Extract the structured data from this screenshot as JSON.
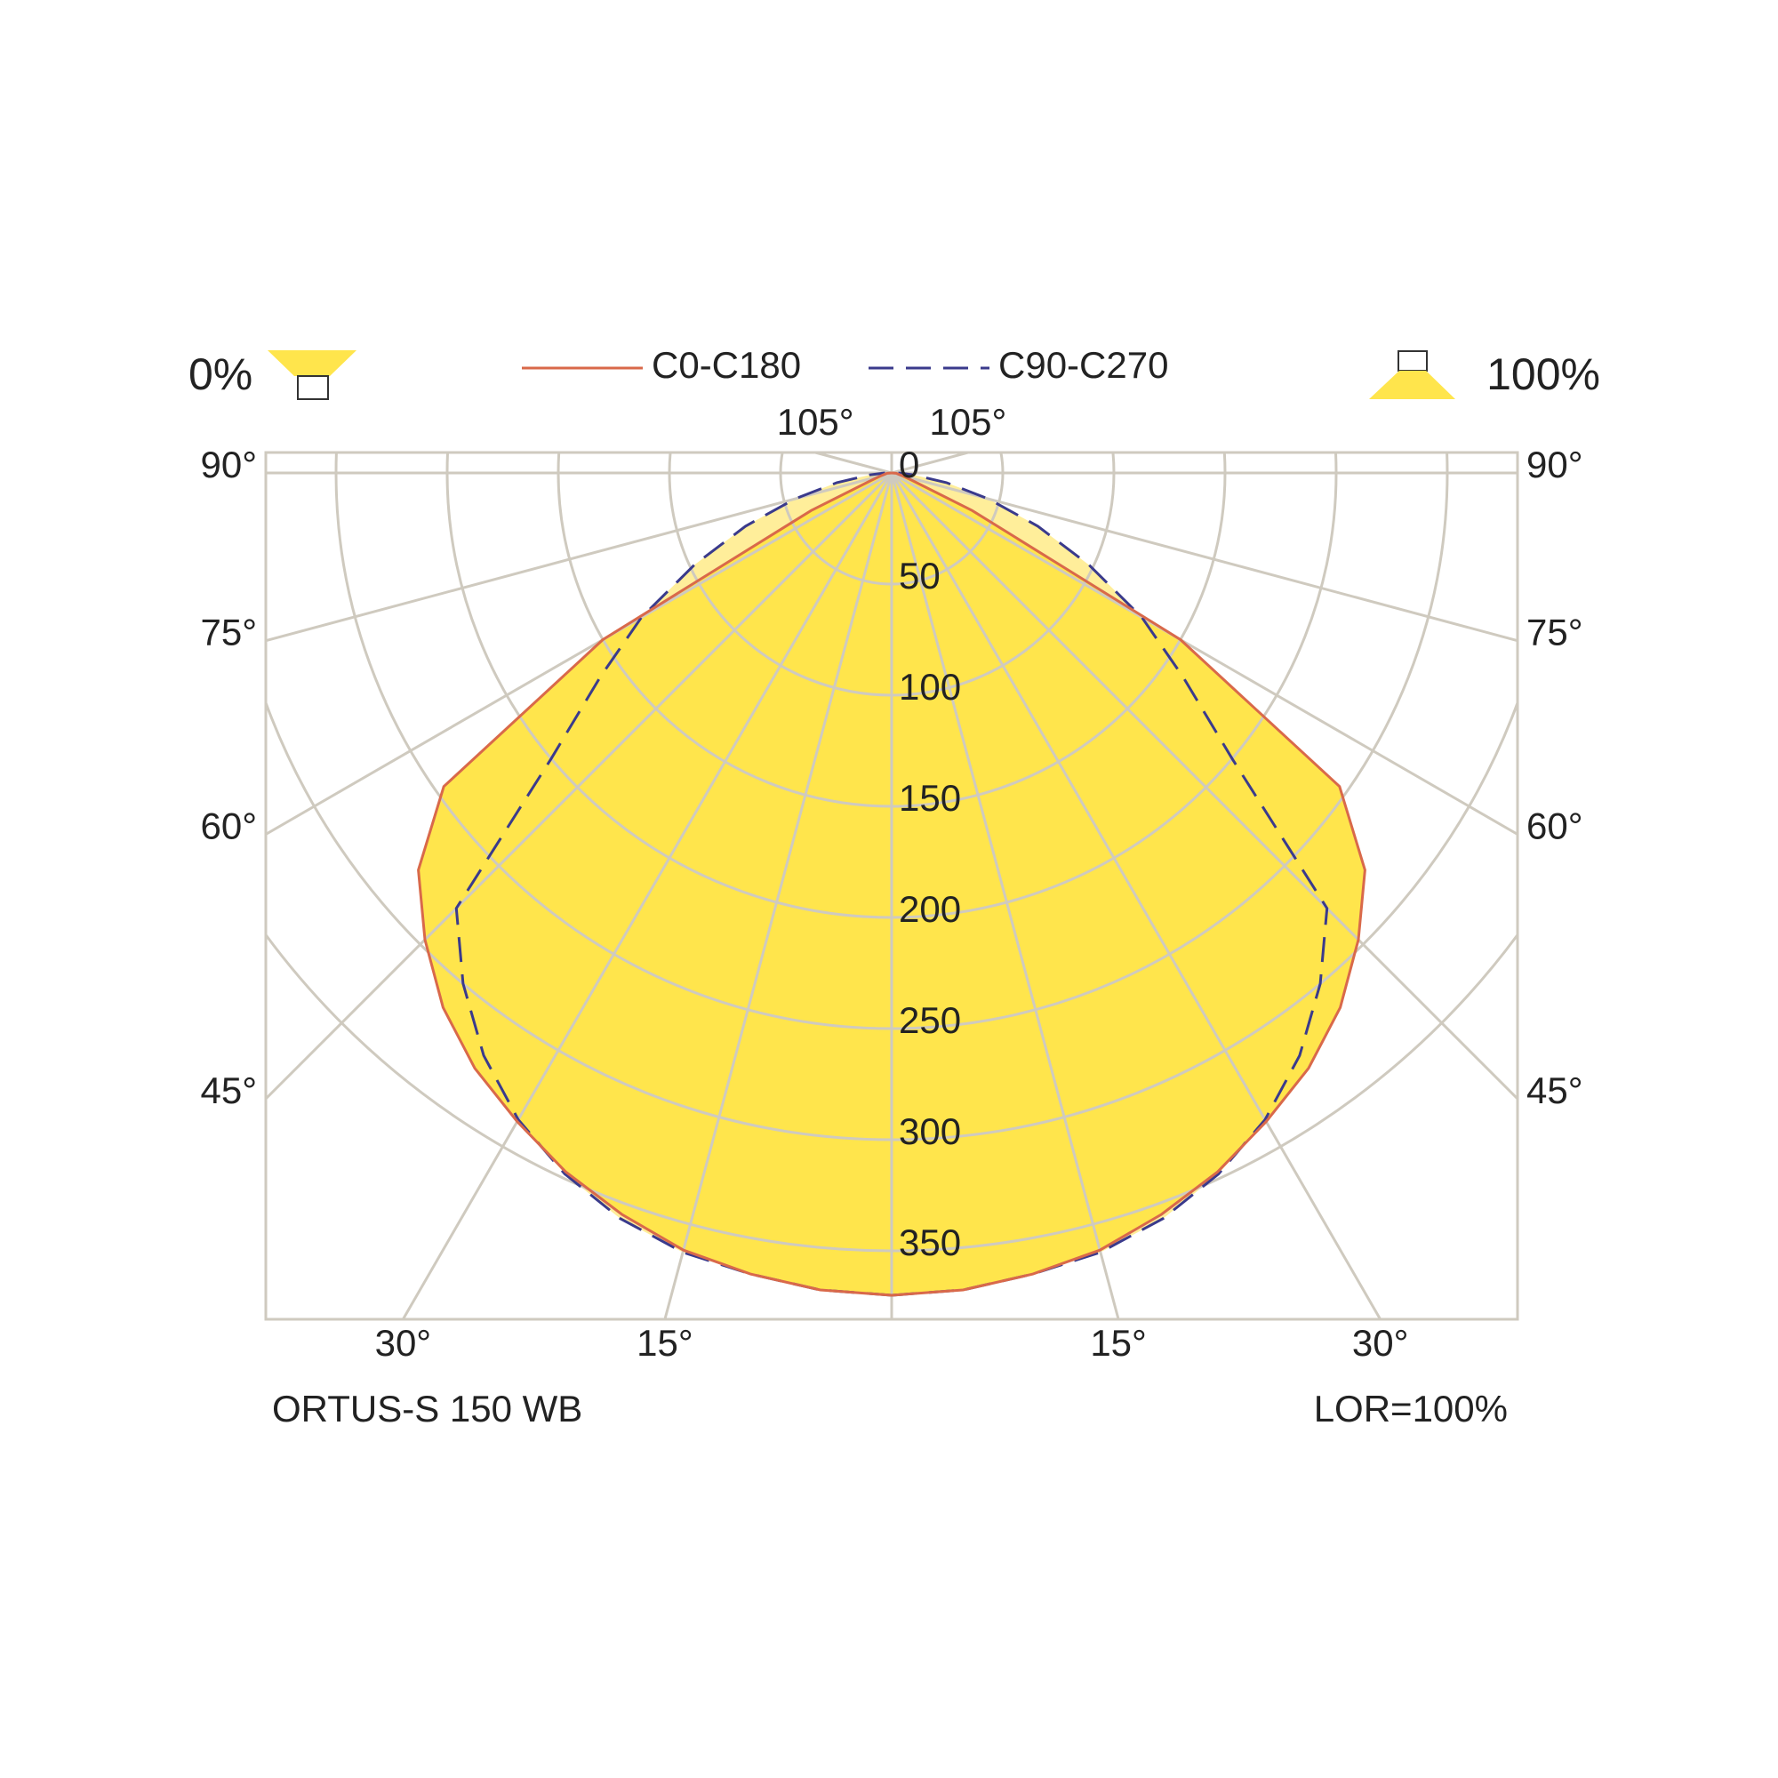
{
  "chart_data": {
    "type": "polar",
    "annotations": {
      "upward": "0%",
      "downward": "100%",
      "luminaire": "ORTUS-S 150 WB",
      "lor": "LOR=100%"
    },
    "angles": [
      0,
      5,
      10,
      15,
      20,
      25,
      30,
      35,
      40,
      45,
      50,
      55,
      60,
      65,
      70,
      75,
      80,
      85,
      90
    ],
    "series": [
      {
        "name": "C0-C180",
        "color": "#d9694a",
        "dash": false,
        "values": [
          370,
          369,
          366,
          362,
          355,
          347,
          337,
          327,
          314,
          297,
          278,
          246,
          150,
          40,
          10,
          5,
          3,
          2,
          0
        ]
      },
      {
        "name": "C90-C270",
        "color": "#3a3a8c",
        "dash": true,
        "values": [
          370,
          369,
          366,
          363,
          357,
          348,
          336,
          320,
          300,
          277,
          200,
          160,
          130,
          98,
          70,
          45,
          25,
          10,
          3
        ]
      }
    ],
    "rlim": [
      0,
      400
    ],
    "rticks": [
      0,
      50,
      100,
      150,
      200,
      250,
      300,
      350
    ],
    "angle_ticks": [
      {
        "value": 15,
        "label": "15°"
      },
      {
        "value": 30,
        "label": "30°"
      },
      {
        "value": 45,
        "label": "45°"
      },
      {
        "value": 60,
        "label": "60°"
      },
      {
        "value": 75,
        "label": "75°"
      },
      {
        "value": 90,
        "label": "90°"
      },
      {
        "value": 105,
        "label": "105°"
      }
    ],
    "grid": true
  }
}
